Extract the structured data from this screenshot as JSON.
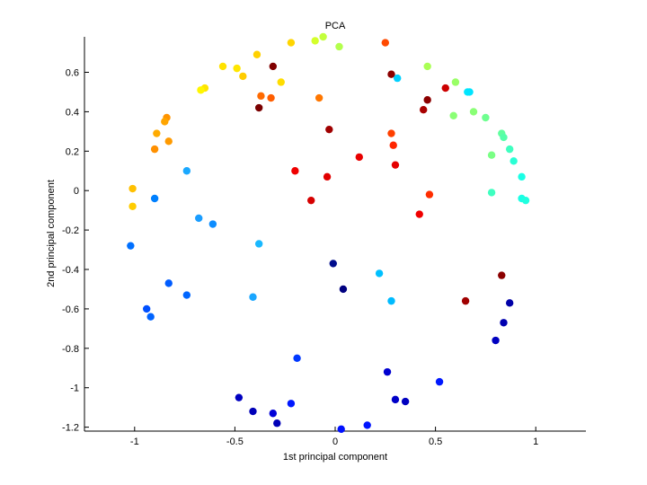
{
  "chart_data": {
    "type": "scatter",
    "title": "PCA",
    "xlabel": "1st principal component",
    "ylabel": "2nd principal component",
    "xlim": [
      -1.25,
      1.25
    ],
    "ylim": [
      -1.22,
      0.78
    ],
    "xticks": [
      -1,
      -0.5,
      0,
      0.5,
      1
    ],
    "xtick_labels": [
      "-1",
      "-0.5",
      "0",
      "0.5",
      "1"
    ],
    "yticks": [
      -1.2,
      -1,
      -0.8,
      -0.6,
      -0.4,
      -0.2,
      0,
      0.2,
      0.4,
      0.6
    ],
    "ytick_labels": [
      "-1.2",
      "-1",
      "-0.8",
      "-0.6",
      "-0.4",
      "-0.2",
      "0",
      "0.2",
      "0.4",
      "0.6"
    ],
    "grid": false,
    "legend": "none",
    "colormap": "jet",
    "points": [
      {
        "x": -0.06,
        "y": 0.78,
        "color": "#c3ff3c"
      },
      {
        "x": -0.22,
        "y": 0.75,
        "color": "#ffd500"
      },
      {
        "x": -0.1,
        "y": 0.76,
        "color": "#d4ff2b"
      },
      {
        "x": 0.02,
        "y": 0.73,
        "color": "#b3ff4d"
      },
      {
        "x": 0.25,
        "y": 0.75,
        "color": "#ff4a00"
      },
      {
        "x": -0.39,
        "y": 0.69,
        "color": "#ffd100"
      },
      {
        "x": -0.31,
        "y": 0.63,
        "color": "#800000"
      },
      {
        "x": -0.56,
        "y": 0.63,
        "color": "#ffe200"
      },
      {
        "x": -0.49,
        "y": 0.62,
        "color": "#ffe600"
      },
      {
        "x": -0.46,
        "y": 0.58,
        "color": "#ffcc00"
      },
      {
        "x": -0.27,
        "y": 0.55,
        "color": "#ffdd00"
      },
      {
        "x": -0.65,
        "y": 0.52,
        "color": "#ffe500"
      },
      {
        "x": -0.67,
        "y": 0.51,
        "color": "#fff600"
      },
      {
        "x": 0.28,
        "y": 0.59,
        "color": "#8b0000"
      },
      {
        "x": 0.31,
        "y": 0.57,
        "color": "#00d0ff"
      },
      {
        "x": 0.46,
        "y": 0.63,
        "color": "#aaff55"
      },
      {
        "x": 0.6,
        "y": 0.55,
        "color": "#99ff66"
      },
      {
        "x": 0.66,
        "y": 0.5,
        "color": "#00e8ff"
      },
      {
        "x": 0.67,
        "y": 0.5,
        "color": "#00e4ff"
      },
      {
        "x": 0.55,
        "y": 0.52,
        "color": "#cc0000"
      },
      {
        "x": 0.46,
        "y": 0.46,
        "color": "#8b0000"
      },
      {
        "x": 0.44,
        "y": 0.41,
        "color": "#a80000"
      },
      {
        "x": -0.37,
        "y": 0.48,
        "color": "#ff6a00"
      },
      {
        "x": -0.32,
        "y": 0.47,
        "color": "#ff5e00"
      },
      {
        "x": -0.08,
        "y": 0.47,
        "color": "#ff7700"
      },
      {
        "x": -0.38,
        "y": 0.42,
        "color": "#7a0000"
      },
      {
        "x": -0.84,
        "y": 0.37,
        "color": "#ff9400"
      },
      {
        "x": -0.85,
        "y": 0.35,
        "color": "#ffa500"
      },
      {
        "x": -0.89,
        "y": 0.29,
        "color": "#ffab00"
      },
      {
        "x": -0.83,
        "y": 0.25,
        "color": "#ff9a00"
      },
      {
        "x": -0.9,
        "y": 0.21,
        "color": "#ff9000"
      },
      {
        "x": -0.03,
        "y": 0.31,
        "color": "#a00000"
      },
      {
        "x": 0.28,
        "y": 0.29,
        "color": "#ff4000"
      },
      {
        "x": 0.29,
        "y": 0.23,
        "color": "#ff2600"
      },
      {
        "x": 0.12,
        "y": 0.17,
        "color": "#e80000"
      },
      {
        "x": 0.3,
        "y": 0.13,
        "color": "#e50000"
      },
      {
        "x": -0.2,
        "y": 0.1,
        "color": "#ef0000"
      },
      {
        "x": -0.04,
        "y": 0.07,
        "color": "#e10000"
      },
      {
        "x": 0.47,
        "y": -0.02,
        "color": "#ff2d00"
      },
      {
        "x": -0.12,
        "y": -0.05,
        "color": "#d60000"
      },
      {
        "x": 0.42,
        "y": -0.12,
        "color": "#f00000"
      },
      {
        "x": 0.59,
        "y": 0.38,
        "color": "#8aff75"
      },
      {
        "x": 0.69,
        "y": 0.4,
        "color": "#8aff75"
      },
      {
        "x": 0.75,
        "y": 0.37,
        "color": "#6fff90"
      },
      {
        "x": 0.83,
        "y": 0.29,
        "color": "#60ff9f"
      },
      {
        "x": 0.84,
        "y": 0.27,
        "color": "#55ffaa"
      },
      {
        "x": 0.87,
        "y": 0.21,
        "color": "#3fffc0"
      },
      {
        "x": 0.78,
        "y": 0.18,
        "color": "#7aff85"
      },
      {
        "x": 0.89,
        "y": 0.15,
        "color": "#2affd5"
      },
      {
        "x": 0.93,
        "y": 0.07,
        "color": "#1affe5"
      },
      {
        "x": 0.78,
        "y": -0.01,
        "color": "#3fffc0"
      },
      {
        "x": 0.93,
        "y": -0.04,
        "color": "#1affe5"
      },
      {
        "x": 0.95,
        "y": -0.05,
        "color": "#20ffdf"
      },
      {
        "x": -1.01,
        "y": 0.01,
        "color": "#ffc000"
      },
      {
        "x": -1.01,
        "y": -0.08,
        "color": "#ffcc00"
      },
      {
        "x": -0.9,
        "y": -0.04,
        "color": "#0080ff"
      },
      {
        "x": -0.74,
        "y": 0.1,
        "color": "#1aa8ff"
      },
      {
        "x": -0.68,
        "y": -0.14,
        "color": "#1a9dff"
      },
      {
        "x": -0.61,
        "y": -0.17,
        "color": "#0d8dff"
      },
      {
        "x": -1.02,
        "y": -0.28,
        "color": "#0070ff"
      },
      {
        "x": -0.38,
        "y": -0.27,
        "color": "#19b8ff"
      },
      {
        "x": -0.83,
        "y": -0.47,
        "color": "#005cff"
      },
      {
        "x": -0.74,
        "y": -0.53,
        "color": "#0066ff"
      },
      {
        "x": -0.41,
        "y": -0.54,
        "color": "#1aa6ff"
      },
      {
        "x": -0.94,
        "y": -0.6,
        "color": "#0050ff"
      },
      {
        "x": -0.92,
        "y": -0.64,
        "color": "#0064ff"
      },
      {
        "x": -0.01,
        "y": -0.37,
        "color": "#000c8c"
      },
      {
        "x": 0.04,
        "y": -0.5,
        "color": "#000080"
      },
      {
        "x": 0.22,
        "y": -0.42,
        "color": "#00c0ff"
      },
      {
        "x": 0.28,
        "y": -0.56,
        "color": "#00bbff"
      },
      {
        "x": 0.65,
        "y": -0.56,
        "color": "#a00000"
      },
      {
        "x": 0.83,
        "y": -0.43,
        "color": "#8b0000"
      },
      {
        "x": 0.87,
        "y": -0.57,
        "color": "#0000a8"
      },
      {
        "x": 0.84,
        "y": -0.67,
        "color": "#0000b0"
      },
      {
        "x": 0.8,
        "y": -0.76,
        "color": "#0000c0"
      },
      {
        "x": -0.19,
        "y": -0.85,
        "color": "#0038ff"
      },
      {
        "x": 0.26,
        "y": -0.92,
        "color": "#0000d0"
      },
      {
        "x": 0.52,
        "y": -0.97,
        "color": "#0018ff"
      },
      {
        "x": -0.48,
        "y": -1.05,
        "color": "#0000c0"
      },
      {
        "x": -0.22,
        "y": -1.08,
        "color": "#0018ff"
      },
      {
        "x": 0.3,
        "y": -1.06,
        "color": "#0000c8"
      },
      {
        "x": 0.35,
        "y": -1.07,
        "color": "#0000c0"
      },
      {
        "x": -0.41,
        "y": -1.12,
        "color": "#0000b8"
      },
      {
        "x": -0.31,
        "y": -1.13,
        "color": "#0000d8"
      },
      {
        "x": -0.29,
        "y": -1.18,
        "color": "#0000b8"
      },
      {
        "x": 0.16,
        "y": -1.19,
        "color": "#0014ff"
      },
      {
        "x": 0.03,
        "y": -1.21,
        "color": "#0010ff"
      }
    ]
  }
}
